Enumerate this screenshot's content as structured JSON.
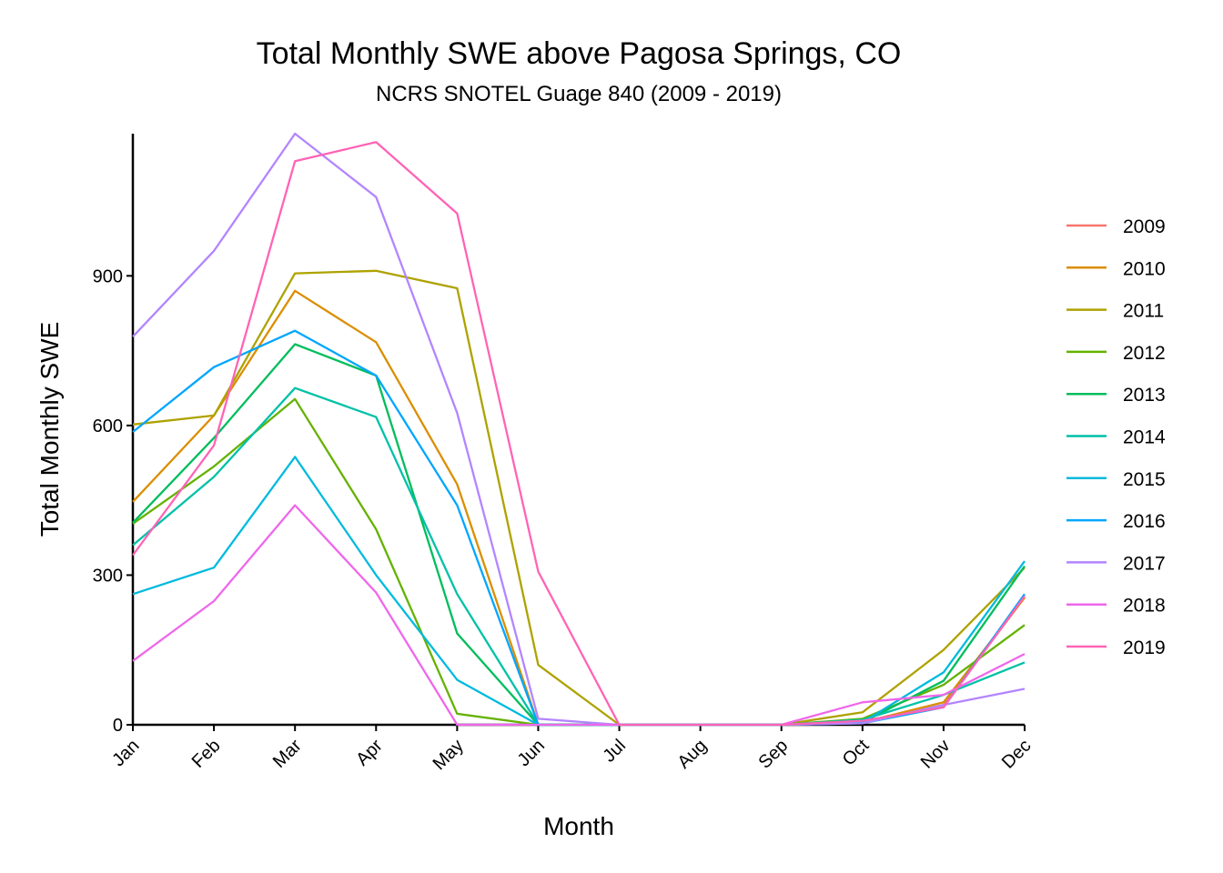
{
  "chart_data": {
    "type": "line",
    "title": "Total Monthly SWE above Pagosa Springs, CO",
    "subtitle": "NCRS SNOTEL Guage 840 (2009 - 2019)",
    "xlabel": "Month",
    "ylabel": "Total Monthly SWE",
    "categories": [
      "Jan",
      "Feb",
      "Mar",
      "Apr",
      "May",
      "Jun",
      "Jul",
      "Aug",
      "Sep",
      "Oct",
      "Nov",
      "Dec"
    ],
    "ylim": [
      0,
      1185
    ],
    "yticks": [
      0,
      300,
      600,
      900
    ],
    "grid": false,
    "legend_position": "right",
    "series": [
      {
        "name": "2009",
        "color": "#F8766D",
        "values": [
          null,
          null,
          null,
          null,
          null,
          null,
          null,
          null,
          0,
          5,
          40,
          255
        ]
      },
      {
        "name": "2010",
        "color": "#DB8E00",
        "values": [
          447,
          620,
          870,
          767,
          482,
          0,
          0,
          0,
          0,
          5,
          45,
          255
        ]
      },
      {
        "name": "2011",
        "color": "#AEA200",
        "values": [
          602,
          620,
          905,
          910,
          875,
          120,
          0,
          0,
          0,
          25,
          150,
          315
        ]
      },
      {
        "name": "2012",
        "color": "#64B200",
        "values": [
          403,
          518,
          653,
          392,
          22,
          0,
          0,
          0,
          0,
          12,
          80,
          200
        ]
      },
      {
        "name": "2013",
        "color": "#00BD5C",
        "values": [
          405,
          575,
          763,
          700,
          183,
          0,
          0,
          0,
          0,
          5,
          88,
          318
        ]
      },
      {
        "name": "2014",
        "color": "#00C1A7",
        "values": [
          360,
          497,
          675,
          617,
          262,
          0,
          0,
          0,
          0,
          10,
          60,
          125
        ]
      },
      {
        "name": "2015",
        "color": "#00BADE",
        "values": [
          262,
          315,
          537,
          300,
          90,
          0,
          0,
          0,
          0,
          5,
          105,
          328
        ]
      },
      {
        "name": "2016",
        "color": "#00A6FF",
        "values": [
          587,
          717,
          790,
          700,
          440,
          0,
          0,
          0,
          0,
          3,
          35,
          262
        ]
      },
      {
        "name": "2017",
        "color": "#B385FF",
        "values": [
          778,
          950,
          1185,
          1058,
          625,
          12,
          0,
          0,
          0,
          3,
          40,
          72
        ]
      },
      {
        "name": "2018",
        "color": "#EF67EB",
        "values": [
          128,
          248,
          440,
          265,
          0,
          0,
          0,
          0,
          0,
          45,
          60,
          142
        ]
      },
      {
        "name": "2019",
        "color": "#FF63B6",
        "values": [
          340,
          560,
          1130,
          1168,
          1025,
          307,
          0,
          0,
          0,
          8,
          35,
          258
        ]
      }
    ]
  }
}
